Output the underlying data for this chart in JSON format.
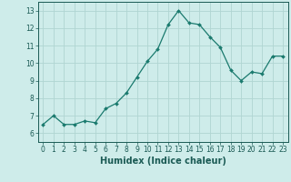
{
  "x": [
    0,
    1,
    2,
    3,
    4,
    5,
    6,
    7,
    8,
    9,
    10,
    11,
    12,
    13,
    14,
    15,
    16,
    17,
    18,
    19,
    20,
    21,
    22,
    23
  ],
  "y": [
    6.5,
    7.0,
    6.5,
    6.5,
    6.7,
    6.6,
    7.4,
    7.7,
    8.3,
    9.2,
    10.1,
    10.8,
    12.2,
    13.0,
    12.3,
    12.2,
    11.5,
    10.9,
    9.6,
    9.0,
    9.5,
    9.4,
    10.4,
    10.4
  ],
  "line_color": "#1a7a6e",
  "marker": "D",
  "marker_size": 2.0,
  "bg_color": "#ceecea",
  "grid_color": "#b0d5d2",
  "xlabel": "Humidex (Indice chaleur)",
  "xlim": [
    -0.5,
    23.5
  ],
  "ylim": [
    5.5,
    13.5
  ],
  "yticks": [
    6,
    7,
    8,
    9,
    10,
    11,
    12,
    13
  ],
  "xticks": [
    0,
    1,
    2,
    3,
    4,
    5,
    6,
    7,
    8,
    9,
    10,
    11,
    12,
    13,
    14,
    15,
    16,
    17,
    18,
    19,
    20,
    21,
    22,
    23
  ],
  "tick_label_fontsize": 5.5,
  "xlabel_fontsize": 7.0,
  "axis_color": "#1a5a54",
  "spine_color": "#1a5a54",
  "line_width": 0.9
}
